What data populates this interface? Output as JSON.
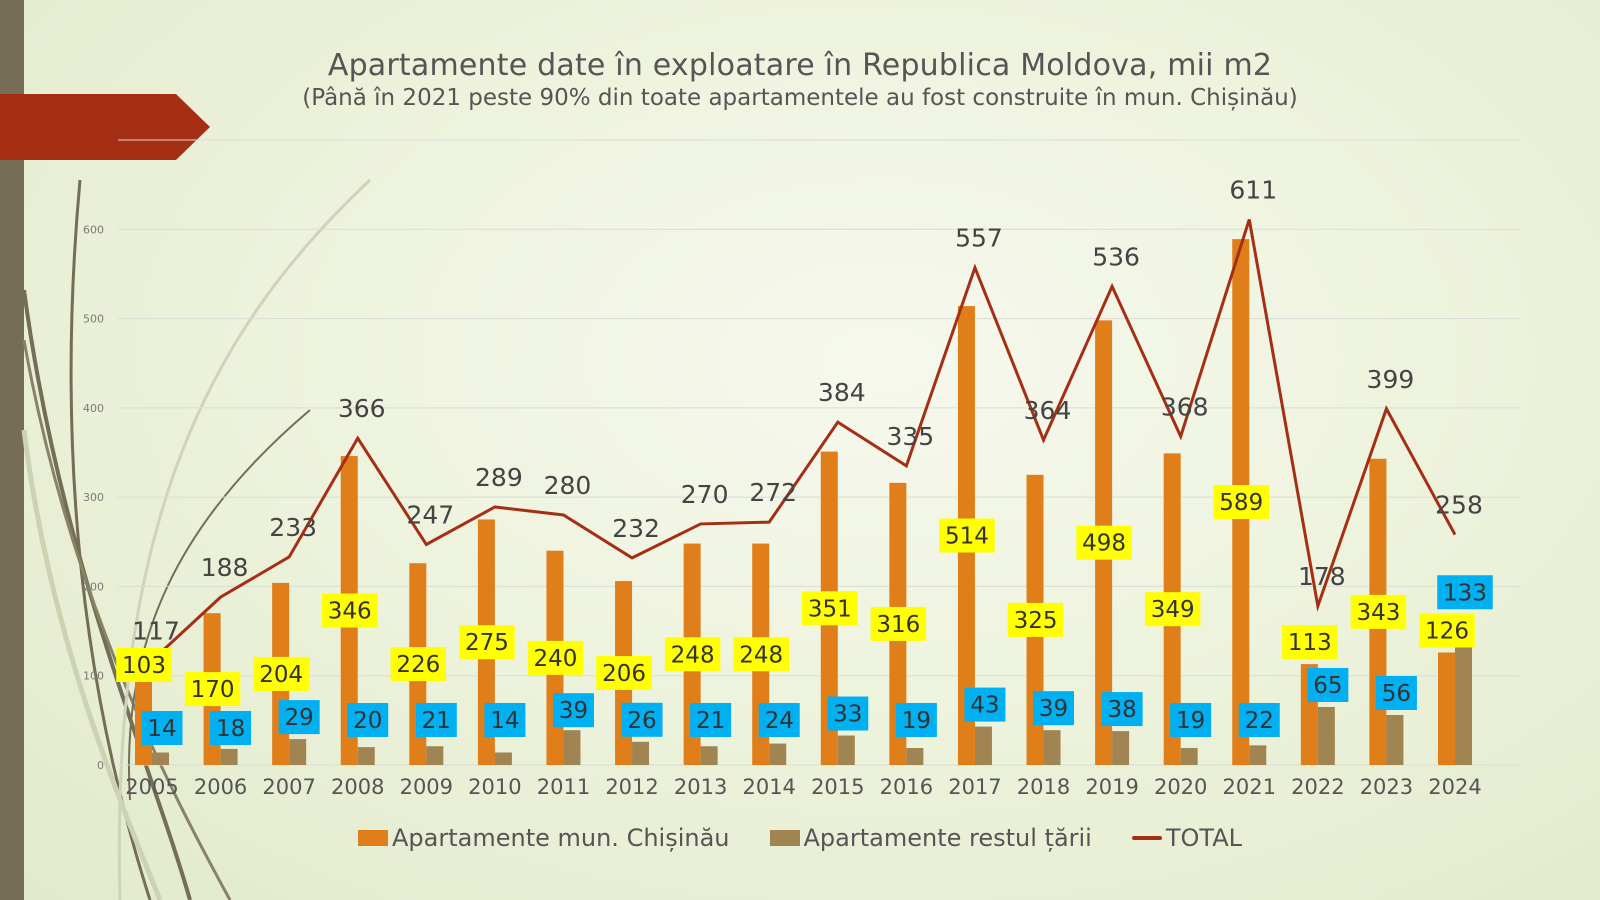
{
  "slide": {
    "accent_colors": {
      "band": "#756d55",
      "arrow": "#a52f14"
    }
  },
  "chart_data": {
    "type": "bar",
    "title": "Apartamente date în exploatare în Republica Moldova, mii m2",
    "subtitle": "(Până în 2021 peste 90% din toate apartamentele au fost construite în mun. Chișinău)",
    "xlabel": "",
    "ylabel": "",
    "ylim": [
      0,
      700
    ],
    "yticks": [
      0,
      100,
      200,
      300,
      400,
      500,
      600,
      700
    ],
    "grid": true,
    "legend_position": "bottom",
    "categories": [
      "2005",
      "2006",
      "2007",
      "2008",
      "2009",
      "2010",
      "2011",
      "2012",
      "2013",
      "2014",
      "2015",
      "2016",
      "2017",
      "2018",
      "2019",
      "2020",
      "2021",
      "2022",
      "2023",
      "2024"
    ],
    "series": [
      {
        "name": "Apartamente mun. Chișinău",
        "type": "bar",
        "color": "#e07e1a",
        "label_bg": "#ffff00",
        "values": [
          103,
          170,
          204,
          346,
          226,
          275,
          240,
          206,
          248,
          248,
          351,
          316,
          514,
          325,
          498,
          349,
          589,
          113,
          343,
          126
        ]
      },
      {
        "name": "Apartamente restul țării",
        "type": "bar",
        "color": "#a08452",
        "label_bg": "#00b0f0",
        "values": [
          14,
          18,
          29,
          20,
          21,
          14,
          39,
          26,
          21,
          24,
          33,
          19,
          43,
          39,
          38,
          19,
          22,
          65,
          56,
          133
        ]
      },
      {
        "name": "TOTAL",
        "type": "line",
        "color": "#a52f14",
        "values": [
          117,
          188,
          233,
          366,
          247,
          289,
          280,
          232,
          270,
          272,
          384,
          335,
          557,
          364,
          536,
          368,
          611,
          178,
          399,
          258
        ]
      }
    ]
  }
}
